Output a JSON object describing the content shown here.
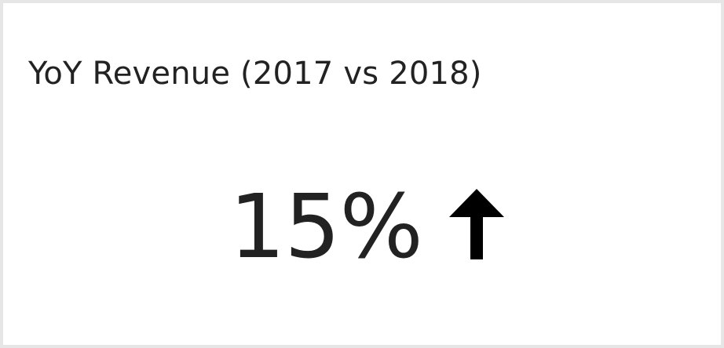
{
  "card": {
    "title": "YoY Revenue (2017 vs 2018)",
    "kpi_value": "15%",
    "trend_icon": "arrow-up-icon",
    "trend_direction": "up"
  },
  "colors": {
    "text": "#222222",
    "icon": "#000000",
    "frame_border": "#e6e6e6",
    "background": "#ffffff"
  }
}
